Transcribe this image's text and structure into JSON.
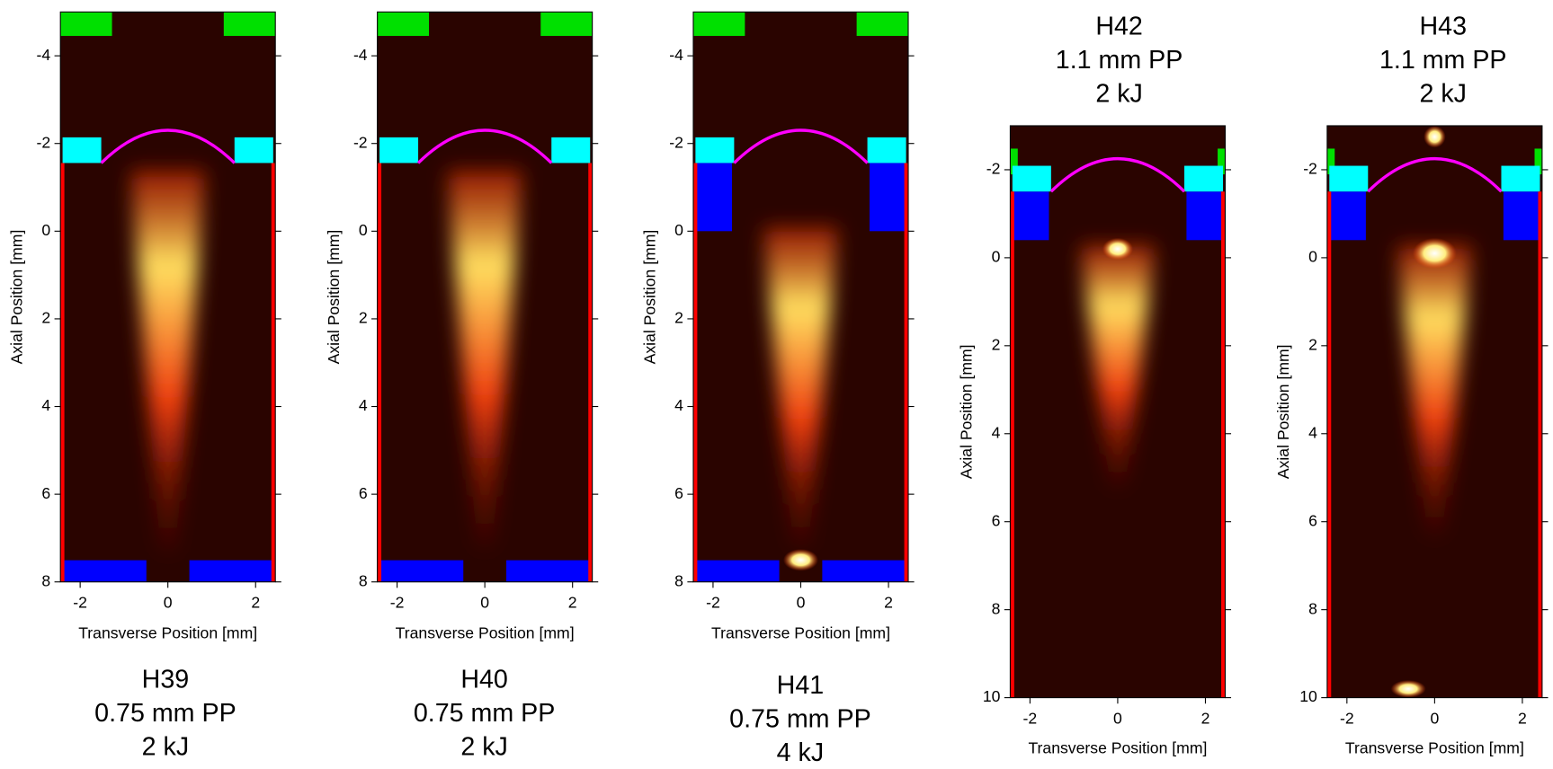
{
  "chart_data": [
    {
      "type": "image",
      "title": [
        "H39",
        "0.75 mm PP",
        "2 kJ"
      ],
      "x_label": "Transverse Position [mm]",
      "y_label": "Axial Position [mm]",
      "xlim": [
        -2.45,
        2.45
      ],
      "ylim": [
        -5,
        8
      ],
      "xticks": [
        -2,
        0,
        2
      ],
      "yticks": [
        -4,
        -2,
        0,
        2,
        4,
        6,
        8
      ]
    },
    {
      "type": "image",
      "title": [
        "H40",
        "0.75 mm PP",
        "2 kJ"
      ],
      "x_label": "Transverse Position [mm]",
      "y_label": "Axial Position [mm]",
      "xlim": [
        -2.45,
        2.45
      ],
      "ylim": [
        -5,
        8
      ],
      "xticks": [
        -2,
        0,
        2
      ],
      "yticks": [
        -4,
        -2,
        0,
        2,
        4,
        6,
        8
      ]
    },
    {
      "type": "image",
      "title": [
        "H41",
        "0.75 mm PP",
        "4 kJ"
      ],
      "x_label": "Transverse Position [mm]",
      "y_label": "Axial Position [mm]",
      "xlim": [
        -2.45,
        2.45
      ],
      "ylim": [
        -5,
        8
      ],
      "xticks": [
        -2,
        0,
        2
      ],
      "yticks": [
        -4,
        -2,
        0,
        2,
        4,
        6,
        8
      ]
    },
    {
      "type": "image",
      "title": [
        "H42",
        "1.1 mm PP",
        "2 kJ"
      ],
      "x_label": "Transverse Position [mm]",
      "y_label": "Axial Position [mm]",
      "xlim": [
        -2.45,
        2.45
      ],
      "ylim": [
        -3,
        10
      ],
      "xticks": [
        -2,
        0,
        2
      ],
      "yticks": [
        -2,
        0,
        2,
        4,
        6,
        8,
        10
      ]
    },
    {
      "type": "image",
      "title": [
        "H43",
        "1.1 mm PP",
        "2 kJ"
      ],
      "x_label": "Transverse Position [mm]",
      "y_label": "Axial Position [mm]",
      "xlim": [
        -2.45,
        2.45
      ],
      "ylim": [
        -3,
        10
      ],
      "xticks": [
        -2,
        0,
        2
      ],
      "yticks": [
        -2,
        0,
        2,
        4,
        6,
        8,
        10
      ]
    }
  ]
}
